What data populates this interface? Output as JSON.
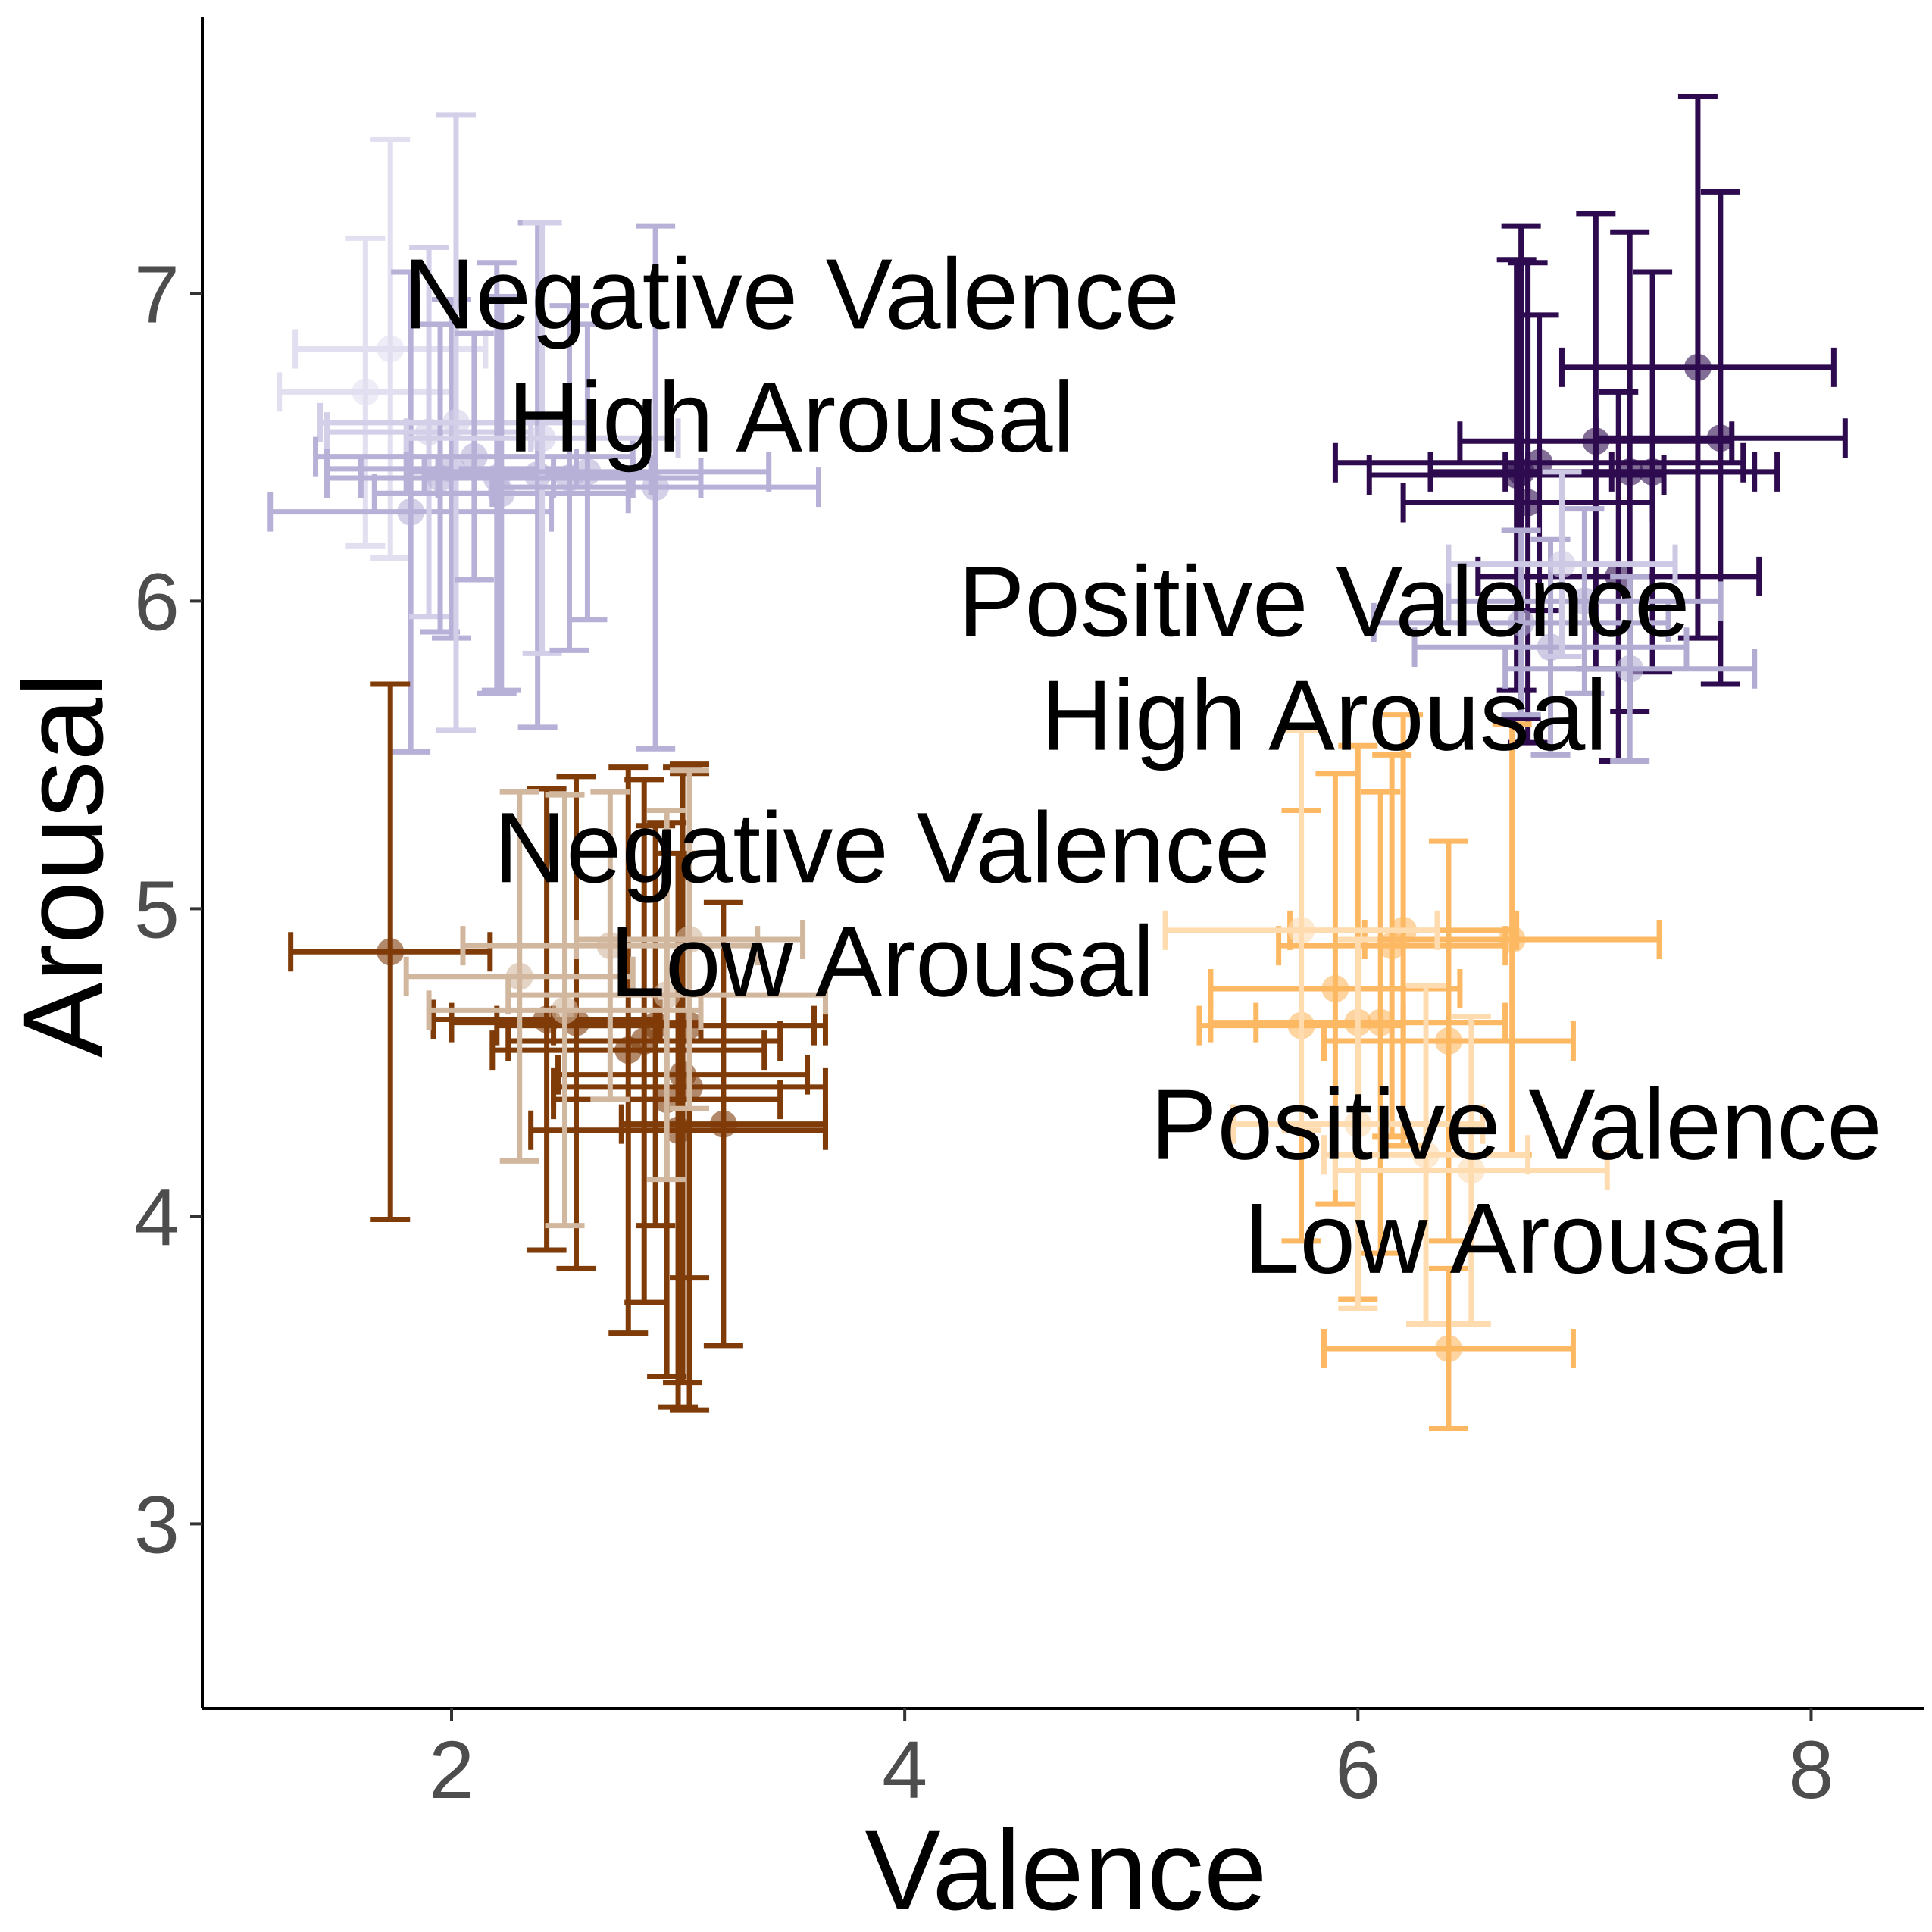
{
  "chart_data": {
    "type": "scatter",
    "title": "",
    "xlabel": "Valence",
    "ylabel": "Arousal",
    "xlim": [
      0.9,
      8.5
    ],
    "ylim": [
      2.4,
      7.9
    ],
    "xticks": [
      2,
      4,
      6,
      8
    ],
    "yticks": [
      3,
      4,
      5,
      6,
      7
    ],
    "grid": false,
    "legend": "none",
    "error_bars": "x and y",
    "annotations": [
      {
        "lines": [
          "Negative Valence",
          "High Arousal"
        ],
        "x": 3.5,
        "y": [
          7.0,
          6.6
        ]
      },
      {
        "lines": [
          "Positive Valence",
          "High Arousal"
        ],
        "x": 5.85,
        "y": [
          6.0,
          5.63
        ]
      },
      {
        "lines": [
          "Negative Valence",
          "Low Arousal"
        ],
        "x": 3.9,
        "y": [
          5.2,
          4.83
        ]
      },
      {
        "lines": [
          "Positive Valence",
          "Low Arousal"
        ],
        "x": 6.7,
        "y": [
          4.3,
          3.93
        ]
      }
    ],
    "series": [
      {
        "color": "#b7b1d8",
        "points": [
          {
            "x": 1.62,
            "y": 6.68,
            "xerr": 0.38,
            "yerr": 0.5,
            "color": "#e2dff0"
          },
          {
            "x": 1.73,
            "y": 6.82,
            "xerr": 0.42,
            "yerr": 0.68,
            "color": "#e2dff0"
          },
          {
            "x": 1.82,
            "y": 6.29,
            "xerr": 0.62,
            "yerr": 0.78
          },
          {
            "x": 1.9,
            "y": 6.55,
            "xerr": 0.45,
            "yerr": 0.6,
            "color": "#d3cfe8"
          },
          {
            "x": 1.95,
            "y": 6.4,
            "xerr": 0.5,
            "yerr": 0.5
          },
          {
            "x": 2.0,
            "y": 6.43,
            "xerr": 0.55,
            "yerr": 0.55
          },
          {
            "x": 2.02,
            "y": 6.58,
            "xerr": 0.6,
            "yerr": 1.0,
            "color": "#d3cfe8"
          },
          {
            "x": 2.1,
            "y": 6.47,
            "xerr": 0.7,
            "yerr": 0.4
          },
          {
            "x": 2.2,
            "y": 6.4,
            "xerr": 0.6,
            "yerr": 0.7
          },
          {
            "x": 2.22,
            "y": 6.35,
            "xerr": 0.56,
            "yerr": 0.64
          },
          {
            "x": 2.38,
            "y": 6.41,
            "xerr": 0.5,
            "yerr": 0.82
          },
          {
            "x": 2.4,
            "y": 6.53,
            "xerr": 0.6,
            "yerr": 0.7,
            "color": "#d3cfe8"
          },
          {
            "x": 2.52,
            "y": 6.4,
            "xerr": 0.58,
            "yerr": 0.56
          },
          {
            "x": 2.6,
            "y": 6.42,
            "xerr": 0.8,
            "yerr": 0.48
          },
          {
            "x": 2.9,
            "y": 6.37,
            "xerr": 0.72,
            "yerr": 0.85
          }
        ]
      },
      {
        "color": "#2d0b4e",
        "points": [
          {
            "x": 6.7,
            "y": 6.41,
            "xerr": 0.65,
            "yerr": 0.7
          },
          {
            "x": 6.72,
            "y": 6.42,
            "xerr": 0.4,
            "yerr": 0.8
          },
          {
            "x": 6.75,
            "y": 6.32,
            "xerr": 0.55,
            "yerr": 0.78
          },
          {
            "x": 7.05,
            "y": 6.52,
            "xerr": 0.6,
            "yerr": 0.74
          },
          {
            "x": 7.2,
            "y": 6.42,
            "xerr": 0.55,
            "yerr": 0.78
          },
          {
            "x": 7.3,
            "y": 6.42,
            "xerr": 0.55,
            "yerr": 0.65
          },
          {
            "x": 7.5,
            "y": 6.76,
            "xerr": 0.6,
            "yerr": 0.88
          },
          {
            "x": 7.6,
            "y": 6.53,
            "xerr": 0.55,
            "yerr": 0.8
          },
          {
            "x": 6.8,
            "y": 6.45,
            "xerr": 0.9,
            "yerr": 0.48
          },
          {
            "x": 7.15,
            "y": 6.08,
            "xerr": 0.62,
            "yerr": 0.6
          }
        ]
      },
      {
        "color": "#b2abd2",
        "points": [
          {
            "x": 6.72,
            "y": 5.93,
            "xerr": 0.65,
            "yerr": 0.3
          },
          {
            "x": 6.85,
            "y": 5.85,
            "xerr": 0.6,
            "yerr": 0.35
          },
          {
            "x": 7.0,
            "y": 6.0,
            "xerr": 0.6,
            "yerr": 0.3
          },
          {
            "x": 7.2,
            "y": 5.78,
            "xerr": 0.55,
            "yerr": 0.3
          },
          {
            "x": 6.9,
            "y": 6.12,
            "xerr": 0.5,
            "yerr": 0.3,
            "color": "#cdc8e3"
          }
        ]
      },
      {
        "color": "#7f3b08",
        "points": [
          {
            "x": 1.73,
            "y": 4.86,
            "xerr": 0.44,
            "yerr": 0.87
          },
          {
            "x": 2.42,
            "y": 4.64,
            "xerr": 0.5,
            "yerr": 0.75
          },
          {
            "x": 2.55,
            "y": 4.63,
            "xerr": 0.55,
            "yerr": 0.8
          },
          {
            "x": 2.78,
            "y": 4.54,
            "xerr": 0.6,
            "yerr": 0.92
          },
          {
            "x": 2.85,
            "y": 4.57,
            "xerr": 0.6,
            "yerr": 0.85
          },
          {
            "x": 2.9,
            "y": 4.62,
            "xerr": 0.7,
            "yerr": 0.65
          },
          {
            "x": 2.95,
            "y": 4.38,
            "xerr": 0.5,
            "yerr": 0.9
          },
          {
            "x": 3.0,
            "y": 4.28,
            "xerr": 0.65,
            "yerr": 0.9
          },
          {
            "x": 3.02,
            "y": 4.46,
            "xerr": 0.55,
            "yerr": 1.0
          },
          {
            "x": 3.05,
            "y": 4.42,
            "xerr": 0.6,
            "yerr": 1.05
          },
          {
            "x": 3.2,
            "y": 4.3,
            "xerr": 0.45,
            "yerr": 0.72
          },
          {
            "x": 3.05,
            "y": 4.62,
            "xerr": 0.6,
            "yerr": 0.82
          }
        ]
      },
      {
        "color": "#d2b79f",
        "points": [
          {
            "x": 2.3,
            "y": 4.78,
            "xerr": 0.5,
            "yerr": 0.6
          },
          {
            "x": 2.5,
            "y": 4.67,
            "xerr": 0.6,
            "yerr": 0.7
          },
          {
            "x": 2.7,
            "y": 4.88,
            "xerr": 0.65,
            "yerr": 0.5
          },
          {
            "x": 2.95,
            "y": 4.72,
            "xerr": 0.7,
            "yerr": 0.6
          },
          {
            "x": 3.05,
            "y": 4.9,
            "xerr": 0.5,
            "yerr": 0.55
          }
        ]
      },
      {
        "color": "#fdb863",
        "points": [
          {
            "x": 5.75,
            "y": 4.62,
            "xerr": 0.45,
            "yerr": 0.7
          },
          {
            "x": 5.9,
            "y": 4.74,
            "xerr": 0.55,
            "yerr": 0.7
          },
          {
            "x": 6.0,
            "y": 4.63,
            "xerr": 0.65,
            "yerr": 0.9
          },
          {
            "x": 6.1,
            "y": 4.63,
            "xerr": 0.55,
            "yerr": 0.75
          },
          {
            "x": 6.15,
            "y": 4.88,
            "xerr": 0.5,
            "yerr": 0.62
          },
          {
            "x": 6.2,
            "y": 4.93,
            "xerr": 0.5,
            "yerr": 0.7
          },
          {
            "x": 6.4,
            "y": 4.57,
            "xerr": 0.55,
            "yerr": 0.65
          },
          {
            "x": 6.68,
            "y": 4.9,
            "xerr": 0.65,
            "yerr": 0.7
          },
          {
            "x": 6.4,
            "y": 3.57,
            "xerr": 0.55,
            "yerr": 0.26
          }
        ]
      },
      {
        "color": "#fedcb0",
        "points": [
          {
            "x": 5.75,
            "y": 4.93,
            "xerr": 0.6,
            "yerr": 0.65
          },
          {
            "x": 6.0,
            "y": 4.3,
            "xerr": 0.55,
            "yerr": 0.6
          },
          {
            "x": 6.5,
            "y": 4.15,
            "xerr": 0.6,
            "yerr": 0.5
          },
          {
            "x": 6.3,
            "y": 4.2,
            "xerr": 0.45,
            "yerr": 0.55
          }
        ]
      }
    ]
  }
}
